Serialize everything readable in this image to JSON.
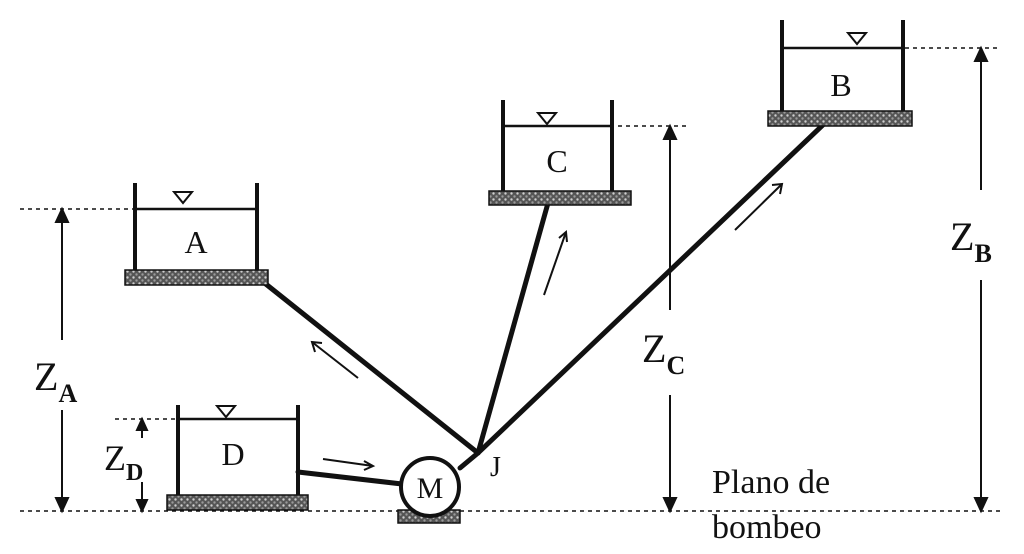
{
  "diagram": {
    "tanks": [
      {
        "id": "A",
        "label": "A"
      },
      {
        "id": "B",
        "label": "B"
      },
      {
        "id": "C",
        "label": "C"
      },
      {
        "id": "D",
        "label": "D"
      }
    ],
    "pump_label": "M",
    "junction_label": "J",
    "datum_label_line1": "Plano de",
    "datum_label_line2": "bombeo",
    "heights": {
      "za": {
        "main": "Z",
        "sub": "A"
      },
      "zb": {
        "main": "Z",
        "sub": "B"
      },
      "zc": {
        "main": "Z",
        "sub": "C"
      },
      "zd": {
        "main": "Z",
        "sub": "D"
      }
    }
  }
}
